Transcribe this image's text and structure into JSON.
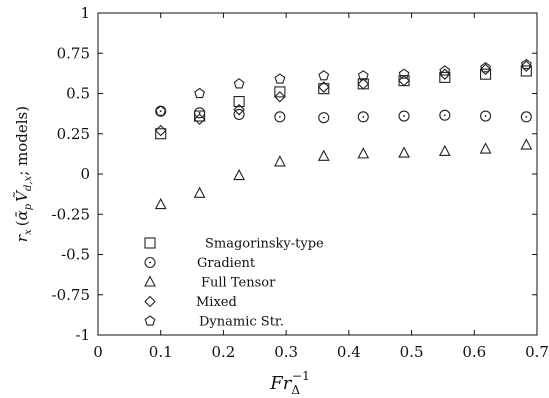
{
  "chart_data": {
    "type": "scatter",
    "xlabel": "Fr_Δ^-1",
    "ylabel": "r_x (ᾱ_p Ṽ_d,x; models)",
    "xlim": [
      0,
      0.7
    ],
    "ylim": [
      -1,
      1
    ],
    "xticks": [
      0,
      0.1,
      0.2,
      0.3,
      0.4,
      0.5,
      0.6,
      0.7
    ],
    "xtick_labels": [
      "0",
      "0.1",
      "0.2",
      "0.3",
      "0.4",
      "0.5",
      "0.6",
      "0.7"
    ],
    "yticks": [
      1,
      0.75,
      0.5,
      0.25,
      0,
      -0.25,
      -0.5,
      -0.75,
      -1
    ],
    "ytick_labels": [
      "1",
      "0.75",
      "0.5",
      "0.25",
      "0",
      "-0.25",
      "-0.5",
      "-0.75",
      "-1"
    ],
    "grid": false,
    "legend_position": "bottom-left",
    "x": [
      0.1,
      0.162,
      0.225,
      0.29,
      0.36,
      0.423,
      0.488,
      0.553,
      0.618,
      0.683
    ],
    "series": [
      {
        "name": "Smagorinsky-type",
        "marker": "square",
        "values": [
          0.25,
          0.36,
          0.45,
          0.51,
          0.53,
          0.56,
          0.58,
          0.6,
          0.62,
          0.64
        ]
      },
      {
        "name": "Gradient",
        "marker": "circle",
        "values": [
          0.39,
          0.38,
          0.37,
          0.355,
          0.35,
          0.355,
          0.36,
          0.365,
          0.36,
          0.355
        ]
      },
      {
        "name": "Full Tensor",
        "marker": "triangle",
        "values": [
          -0.19,
          -0.12,
          -0.01,
          0.075,
          0.11,
          0.125,
          0.13,
          0.14,
          0.155,
          0.18
        ]
      },
      {
        "name": "Mixed",
        "marker": "diamond",
        "values": [
          0.27,
          0.34,
          0.4,
          0.48,
          0.54,
          0.56,
          0.58,
          0.62,
          0.65,
          0.67
        ]
      },
      {
        "name": "Dynamic Str.",
        "marker": "pentagon",
        "values": [
          0.39,
          0.5,
          0.56,
          0.59,
          0.61,
          0.61,
          0.62,
          0.64,
          0.66,
          0.68
        ]
      }
    ]
  }
}
